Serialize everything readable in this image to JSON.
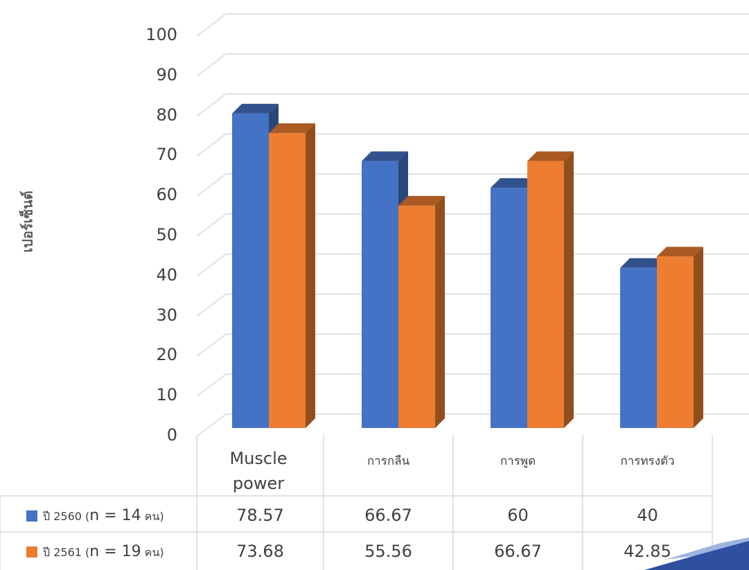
{
  "chart_data": {
    "type": "bar",
    "title": "",
    "xlabel": "",
    "ylabel": "เปอร์เซ็นต์",
    "ylim": [
      0,
      100
    ],
    "yticks": [
      "0",
      "10",
      "20",
      "30",
      "40",
      "50",
      "60",
      "70",
      "80",
      "90",
      "100"
    ],
    "categories": [
      "Muscle power",
      "การกลืน",
      "การพูด",
      "การทรงตัว"
    ],
    "series": [
      {
        "name": "ปี 2560 (n = 14 คน)",
        "legend": {
          "prefix": "ปี 2560 (",
          "n": "n = 14",
          "suffix": " คน)"
        },
        "values": [
          78.57,
          66.67,
          60,
          40
        ],
        "labels": [
          "78.57",
          "66.67",
          "60",
          "40"
        ],
        "color": "#4472C4"
      },
      {
        "name": "ปี 2561 (n = 19 คน)",
        "legend": {
          "prefix": "ปี 2561 (",
          "n": "n = 19",
          "suffix": " คน)"
        },
        "values": [
          73.68,
          55.56,
          66.67,
          42.85
        ],
        "labels": [
          "73.68",
          "55.56",
          "66.67",
          "42.85"
        ],
        "color": "#ED7D31"
      }
    ],
    "data_table": true,
    "grid": true
  }
}
